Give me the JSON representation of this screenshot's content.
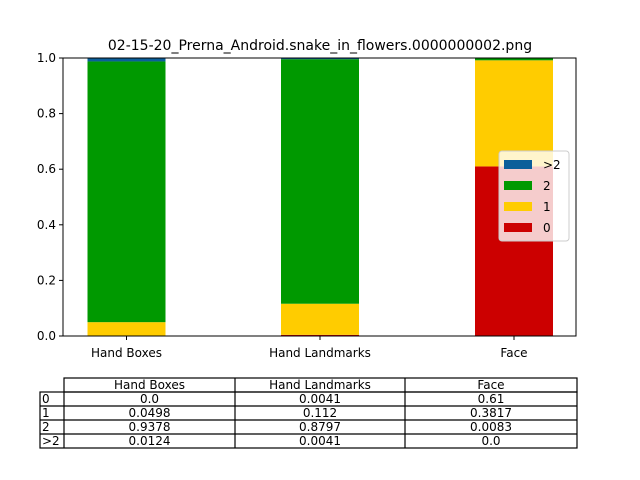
{
  "chart_data": {
    "type": "bar",
    "stacked": true,
    "title": "02-15-20_Prerna_Android.snake_in_flowers.0000000002.png",
    "categories": [
      "Hand Boxes",
      "Hand Landmarks",
      "Face"
    ],
    "ylim": [
      0,
      1
    ],
    "yticks": [
      "0.0",
      "0.2",
      "0.4",
      "0.6",
      "0.8",
      "1.0"
    ],
    "grid": false,
    "legend_position": "center-right",
    "series": [
      {
        "name": "0",
        "color": "#cc0000",
        "values": [
          0.0,
          0.0041,
          0.61
        ]
      },
      {
        "name": "1",
        "color": "#ffcc00",
        "values": [
          0.0498,
          0.112,
          0.3817
        ]
      },
      {
        "name": "2",
        "color": "#009900",
        "values": [
          0.9378,
          0.8797,
          0.0083
        ]
      },
      {
        "name": ">2",
        "color": "#0b5f9a",
        "values": [
          0.0124,
          0.0041,
          0.0
        ]
      }
    ],
    "table": {
      "columns": [
        "Hand Boxes",
        "Hand Landmarks",
        "Face"
      ],
      "rows": [
        {
          "label": "0",
          "cells": [
            "0.0",
            "0.0041",
            "0.61"
          ]
        },
        {
          "label": "1",
          "cells": [
            "0.0498",
            "0.112",
            "0.3817"
          ]
        },
        {
          "label": "2",
          "cells": [
            "0.9378",
            "0.8797",
            "0.0083"
          ]
        },
        {
          "label": ">2",
          "cells": [
            "0.0124",
            "0.0041",
            "0.0"
          ]
        }
      ]
    }
  }
}
